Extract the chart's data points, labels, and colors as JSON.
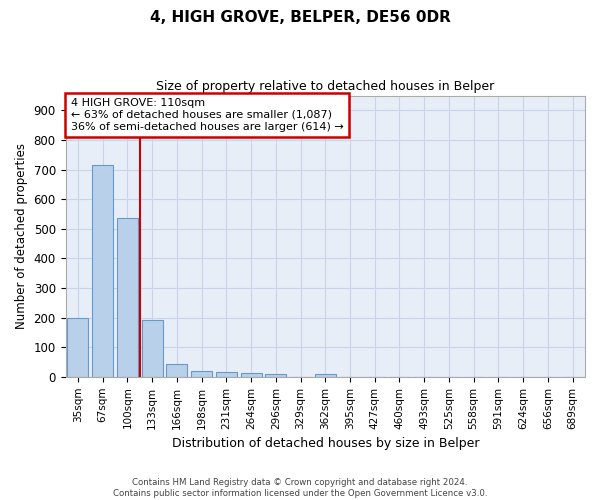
{
  "title": "4, HIGH GROVE, BELPER, DE56 0DR",
  "subtitle": "Size of property relative to detached houses in Belper",
  "xlabel": "Distribution of detached houses by size in Belper",
  "ylabel": "Number of detached properties",
  "categories": [
    "35sqm",
    "67sqm",
    "100sqm",
    "133sqm",
    "166sqm",
    "198sqm",
    "231sqm",
    "264sqm",
    "296sqm",
    "329sqm",
    "362sqm",
    "395sqm",
    "427sqm",
    "460sqm",
    "493sqm",
    "525sqm",
    "558sqm",
    "591sqm",
    "624sqm",
    "656sqm",
    "689sqm"
  ],
  "values": [
    200,
    715,
    535,
    193,
    43,
    20,
    15,
    14,
    10,
    0,
    9,
    0,
    0,
    0,
    0,
    0,
    0,
    0,
    0,
    0,
    0
  ],
  "bar_color": "#b8d0ea",
  "bar_edge_color": "#6699cc",
  "red_line_x": 2.5,
  "annotation_text": "4 HIGH GROVE: 110sqm\n← 63% of detached houses are smaller (1,087)\n36% of semi-detached houses are larger (614) →",
  "annotation_box_color": "#ffffff",
  "annotation_box_edge_color": "#cc0000",
  "red_line_color": "#cc0000",
  "grid_color": "#c8d4e8",
  "background_color": "#e8eef8",
  "ylim": [
    0,
    950
  ],
  "yticks": [
    0,
    100,
    200,
    300,
    400,
    500,
    600,
    700,
    800,
    900
  ],
  "footer_line1": "Contains HM Land Registry data © Crown copyright and database right 2024.",
  "footer_line2": "Contains public sector information licensed under the Open Government Licence v3.0."
}
